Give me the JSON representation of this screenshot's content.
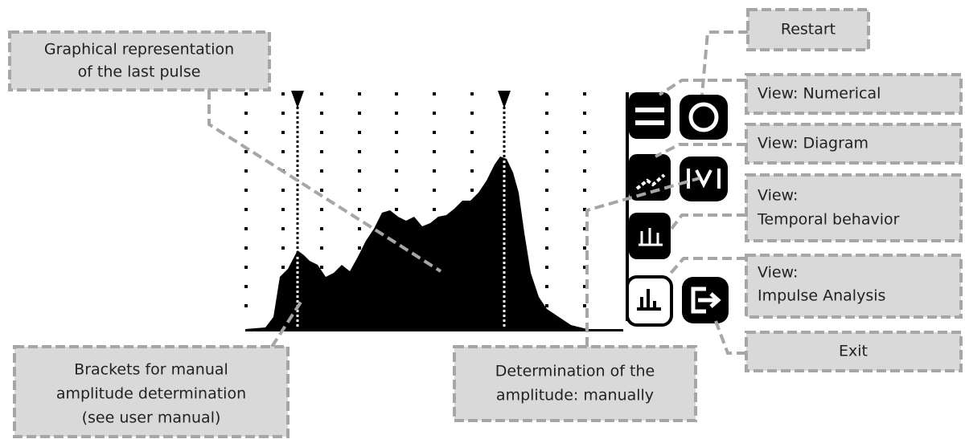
{
  "callouts": [
    {
      "lines": [
        "Graphical representation",
        "of the last pulse"
      ]
    },
    {
      "lines": [
        "Restart"
      ]
    },
    {
      "lines": [
        "View: Numerical"
      ]
    },
    {
      "lines": [
        "View: Diagram"
      ]
    },
    {
      "lines": [
        "View:",
        "Temporal behavior"
      ]
    },
    {
      "lines": [
        "View:",
        "Impulse Analysis"
      ]
    },
    {
      "lines": [
        "Exit"
      ]
    },
    {
      "lines": [
        "Brackets for manual",
        "amplitude determination",
        "(see user manual)"
      ]
    },
    {
      "lines": [
        "Determination of the",
        "amplitude: manually"
      ]
    }
  ]
}
